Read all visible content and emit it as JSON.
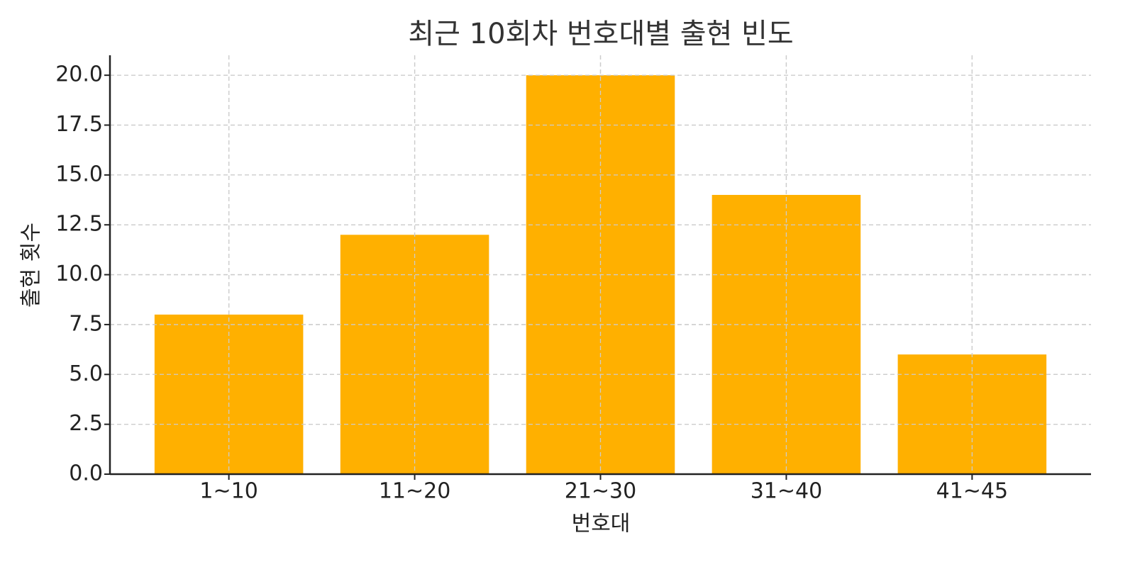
{
  "chart_data": {
    "type": "bar",
    "title": "최근 10회차 번호대별 출현 빈도",
    "x_label": "번호대",
    "y_label": "출현 횟수",
    "categories": [
      "1~10",
      "11~20",
      "21~30",
      "31~40",
      "41~45"
    ],
    "values": [
      8,
      12,
      20,
      14,
      6
    ],
    "color": "#ffb000",
    "ylim": [
      0,
      21
    ],
    "yticks": [
      {
        "value": 0,
        "label": "0.0"
      },
      2.5,
      {
        "value": 5,
        "label": "5.0"
      },
      7.5,
      {
        "value": 10,
        "label": "10.0"
      },
      12.5,
      {
        "value": 15,
        "label": "15.0"
      },
      17.5,
      {
        "value": 20,
        "label": "20.0"
      }
    ],
    "grid": true
  }
}
